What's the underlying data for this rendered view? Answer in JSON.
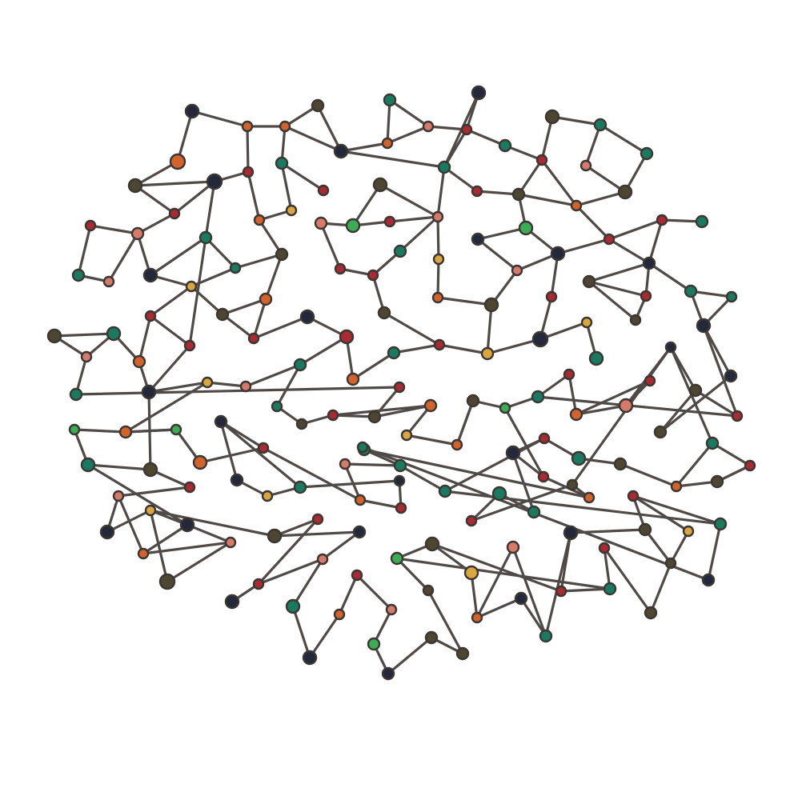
{
  "graph": {
    "palette": {
      "navy": "#23283a",
      "olive": "#4d4630",
      "red": "#a92a32",
      "orange": "#d2632d",
      "salmon": "#d67b6b",
      "teal": "#1a7a5f",
      "green": "#3cad54",
      "ochre": "#d9a63f"
    },
    "edge_color": "#4f4a47",
    "background": "#ffffff"
  }
}
